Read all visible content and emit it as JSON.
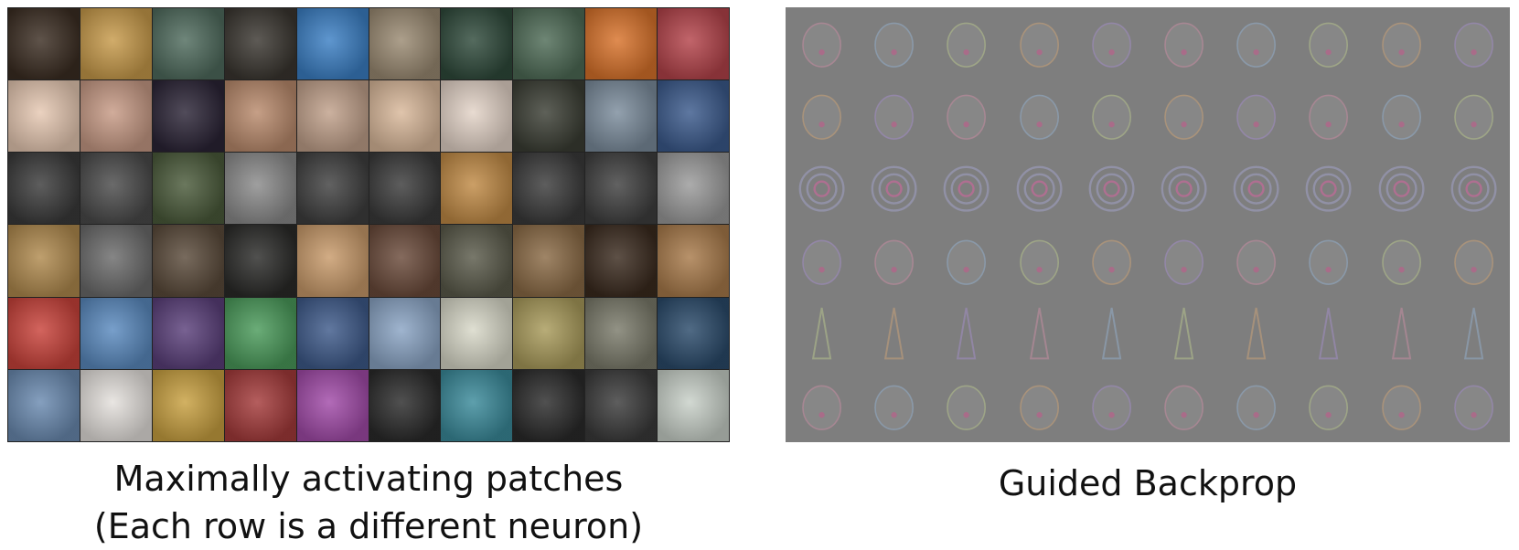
{
  "figure": {
    "left_panel": {
      "caption_line1": "Maximally activating patches",
      "caption_line2": "(Each row is a different neuron)",
      "rows": 6,
      "cols": 10,
      "patch_colors": [
        [
          "#3b2d22",
          "#c79a4a",
          "#4f6b5d",
          "#3a3630",
          "#3b7fc4",
          "#9a8a72",
          "#2f4a3b",
          "#4e6b56",
          "#d8722a",
          "#b4434a"
        ],
        [
          "#e6c8b2",
          "#c79a85",
          "#2b2436",
          "#b98a6c",
          "#c0a08a",
          "#d9b89a",
          "#e3d3c7",
          "#3b3e34",
          "#7b8c9c",
          "#3b5a8c"
        ],
        [
          "#3a3a3a",
          "#4a4a4a",
          "#4a5a3a",
          "#8a8a8a",
          "#3f3f3f",
          "#3a3a3a",
          "#c08a45",
          "#3a3a3a",
          "#3f3f3f",
          "#9a9a9a"
        ],
        [
          "#b08a4e",
          "#6b6b6b",
          "#5a4a3a",
          "#2a2a28",
          "#c89a6a",
          "#6a4a3a",
          "#5a5a4a",
          "#8a6a45",
          "#3a2a1e",
          "#a87a4a"
        ],
        [
          "#c9423a",
          "#5a8abf",
          "#5a3f7a",
          "#4a9a5a",
          "#3e5a8a",
          "#8aa4c4",
          "#d8d8c8",
          "#a89a5a",
          "#7a7a6a",
          "#2a4a6a"
        ],
        [
          "#6a8ab0",
          "#e4e0dc",
          "#c8a040",
          "#a43a3a",
          "#a14aa8",
          "#2a2a2a",
          "#3a8a9a",
          "#2a2a2a",
          "#3a3a3a",
          "#c8d0c8"
        ]
      ]
    },
    "right_panel": {
      "caption": "Guided Backprop",
      "background_color": "#7e7e7e"
    }
  }
}
